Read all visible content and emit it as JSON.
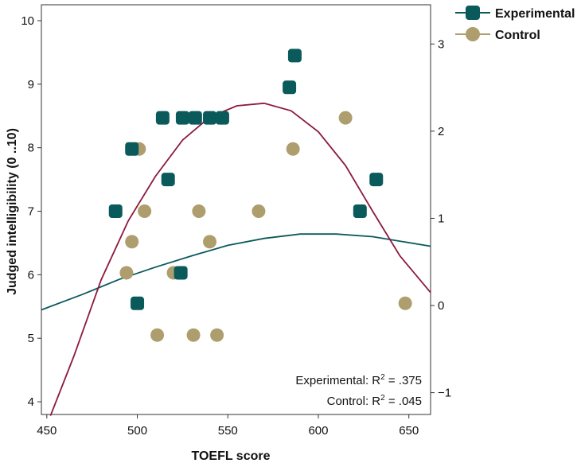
{
  "chart_data": {
    "type": "scatter",
    "xlabel": "TOEFL score",
    "ylabel": "Judged intelligibility (0 ..10)",
    "xlim": [
      447,
      662
    ],
    "ylim": [
      3.8,
      10.25
    ],
    "x_ticks": [
      450,
      500,
      550,
      600,
      650
    ],
    "y_ticks": [
      4,
      5,
      6,
      7,
      8,
      9,
      10
    ],
    "y2_ticks": [
      {
        "label": "3",
        "value": 3
      },
      {
        "label": "2",
        "value": 2
      },
      {
        "label": "1",
        "value": 1
      },
      {
        "label": "0",
        "value": 0
      },
      {
        "label": "−1",
        "value": -1
      }
    ],
    "y2lim": [
      -1.25,
      3.45
    ],
    "grid": false,
    "legend_position": "top-right-outside",
    "series": [
      {
        "name": "Experimental",
        "marker": "rounded-square",
        "color": "#0a5a5c",
        "points": [
          {
            "x": 488,
            "y": 7.0
          },
          {
            "x": 497,
            "y": 7.98
          },
          {
            "x": 500,
            "y": 5.55
          },
          {
            "x": 514,
            "y": 8.47
          },
          {
            "x": 517,
            "y": 7.5
          },
          {
            "x": 524,
            "y": 6.03
          },
          {
            "x": 525,
            "y": 8.47
          },
          {
            "x": 532,
            "y": 8.47
          },
          {
            "x": 540,
            "y": 8.47
          },
          {
            "x": 547,
            "y": 8.47
          },
          {
            "x": 584,
            "y": 8.95
          },
          {
            "x": 587,
            "y": 9.45
          },
          {
            "x": 623,
            "y": 7.0
          },
          {
            "x": 632,
            "y": 7.5
          }
        ],
        "fit_y2": [
          {
            "x": 447,
            "y2": -0.05
          },
          {
            "x": 470,
            "y2": 0.13
          },
          {
            "x": 490,
            "y2": 0.3
          },
          {
            "x": 510,
            "y2": 0.44
          },
          {
            "x": 530,
            "y2": 0.57
          },
          {
            "x": 550,
            "y2": 0.69
          },
          {
            "x": 570,
            "y2": 0.77
          },
          {
            "x": 590,
            "y2": 0.82
          },
          {
            "x": 610,
            "y2": 0.82
          },
          {
            "x": 630,
            "y2": 0.79
          },
          {
            "x": 662,
            "y2": 0.68
          }
        ]
      },
      {
        "name": "Control",
        "marker": "circle",
        "color": "#ae9e6e",
        "points": [
          {
            "x": 494,
            "y": 6.03
          },
          {
            "x": 497,
            "y": 6.52
          },
          {
            "x": 501,
            "y": 7.98
          },
          {
            "x": 504,
            "y": 7.0
          },
          {
            "x": 511,
            "y": 5.05
          },
          {
            "x": 520,
            "y": 6.03
          },
          {
            "x": 531,
            "y": 5.05
          },
          {
            "x": 534,
            "y": 7.0
          },
          {
            "x": 540,
            "y": 6.52
          },
          {
            "x": 544,
            "y": 5.05
          },
          {
            "x": 567,
            "y": 7.0
          },
          {
            "x": 586,
            "y": 7.98
          },
          {
            "x": 615,
            "y": 8.47
          },
          {
            "x": 648,
            "y": 5.55
          }
        ],
        "fit": [
          {
            "x": 452,
            "y": 3.78
          },
          {
            "x": 465,
            "y": 4.72
          },
          {
            "x": 480,
            "y": 5.92
          },
          {
            "x": 495,
            "y": 6.85
          },
          {
            "x": 510,
            "y": 7.55
          },
          {
            "x": 525,
            "y": 8.12
          },
          {
            "x": 540,
            "y": 8.48
          },
          {
            "x": 555,
            "y": 8.66
          },
          {
            "x": 570,
            "y": 8.7
          },
          {
            "x": 585,
            "y": 8.58
          },
          {
            "x": 600,
            "y": 8.25
          },
          {
            "x": 615,
            "y": 7.72
          },
          {
            "x": 630,
            "y": 7.0
          },
          {
            "x": 645,
            "y": 6.3
          },
          {
            "x": 662,
            "y": 5.72
          }
        ],
        "fit_color": "#8b1a3c"
      }
    ],
    "annotations": [
      {
        "label": "Experimental: R",
        "sup": "2",
        "value": " = .375"
      },
      {
        "label": "Control: R",
        "sup": "2",
        "value": " = .045"
      }
    ]
  }
}
